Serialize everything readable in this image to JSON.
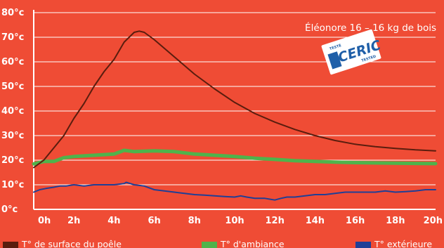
{
  "chart_data": {
    "type": "line",
    "title": "Éléonore 16 – 16 kg de bois",
    "x_ticks": [
      "0h",
      "2h",
      "4h",
      "6h",
      "8h",
      "10h",
      "12h",
      "14h",
      "16h",
      "18h",
      "20h"
    ],
    "y_ticks": [
      "0°c",
      "10°c",
      "20°c",
      "30°c",
      "40°c",
      "50°c",
      "60°c",
      "70°c",
      "80°c"
    ],
    "xlim": [
      0,
      20
    ],
    "ylim": [
      0,
      80
    ],
    "grid": "horizontal",
    "legend_position": "bottom",
    "series": [
      {
        "name": "T° de surface du poêle",
        "color": "#5a1d0e",
        "x": [
          0,
          0.5,
          1,
          1.5,
          2,
          2.5,
          3,
          3.5,
          4,
          4.5,
          5,
          5.25,
          5.5,
          6,
          7,
          8,
          9,
          10,
          11,
          12,
          13,
          14,
          15,
          16,
          17,
          18,
          19,
          20
        ],
        "y": [
          17,
          20,
          25,
          30,
          37,
          43,
          50,
          56,
          61,
          68,
          72,
          72.5,
          72,
          69,
          62,
          55,
          49,
          43.5,
          39,
          35.5,
          32.5,
          30,
          28,
          26.5,
          25.5,
          24.8,
          24.2,
          23.8
        ]
      },
      {
        "name": "T° d'ambiance",
        "color": "#4fb34b",
        "x": [
          0,
          0.5,
          1,
          1.5,
          2,
          3,
          4,
          4.5,
          5,
          6,
          7,
          8,
          9,
          10,
          11,
          12,
          13,
          14,
          15,
          16,
          17,
          18,
          19,
          20
        ],
        "y": [
          18.5,
          19.5,
          19.5,
          21,
          21.5,
          22,
          22.5,
          24,
          23.5,
          23.8,
          23.5,
          22.5,
          22,
          21.5,
          20.8,
          20.3,
          19.8,
          19.5,
          19.2,
          19.0,
          18.9,
          18.8,
          18.7,
          18.6
        ]
      },
      {
        "name": "T° extérieure",
        "color": "#1f3f96",
        "x": [
          0,
          0.3,
          0.6,
          1,
          1.3,
          1.6,
          2,
          2.5,
          3,
          3.5,
          4,
          4.5,
          4.6,
          5,
          5.5,
          6,
          6.5,
          7,
          7.5,
          8,
          8.5,
          9,
          9.5,
          10,
          10.3,
          10.6,
          11,
          11.5,
          12,
          12.3,
          12.6,
          13,
          13.5,
          14,
          14.5,
          15,
          15.5,
          16,
          16.5,
          17,
          17.5,
          18,
          18.5,
          19,
          19.5,
          20
        ],
        "y": [
          7,
          8,
          8.5,
          9,
          9.5,
          9.5,
          10,
          9.5,
          10,
          10,
          10,
          10.5,
          11,
          10,
          9.5,
          8,
          7.5,
          7,
          6.5,
          6,
          5.8,
          5.5,
          5.2,
          5,
          5.5,
          5,
          4.5,
          4.5,
          3.8,
          4.5,
          5,
          5,
          5.5,
          6,
          6,
          6.5,
          7,
          7,
          7,
          7,
          7.5,
          7,
          7.2,
          7.5,
          8,
          8
        ]
      }
    ]
  },
  "logo": {
    "small_top": "TESTÉ",
    "main": "CERIC",
    "small_bottom": "TESTED"
  }
}
